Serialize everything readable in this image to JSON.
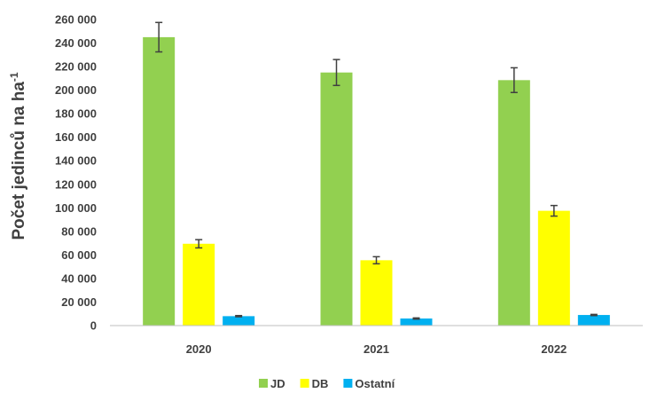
{
  "chart_data": {
    "type": "bar",
    "title": "",
    "xlabel": "",
    "ylabel": "Počet jedinců na ha",
    "ylabel_superscript": "-1",
    "categories": [
      "2020",
      "2021",
      "2022"
    ],
    "ylim": [
      0,
      260000
    ],
    "yticks": [
      0,
      20000,
      40000,
      60000,
      80000,
      100000,
      120000,
      140000,
      160000,
      180000,
      200000,
      220000,
      240000,
      260000
    ],
    "ytick_labels": [
      "0",
      "20 000",
      "40 000",
      "60 000",
      "80 000",
      "100 000",
      "120 000",
      "140 000",
      "160 000",
      "180 000",
      "200 000",
      "220 000",
      "240 000",
      "260 000"
    ],
    "grid": false,
    "legend_position": "bottom",
    "series": [
      {
        "name": "JD",
        "color": "#92d050",
        "values": [
          245000,
          215000,
          208500
        ],
        "errors": [
          12500,
          11000,
          10500
        ]
      },
      {
        "name": "DB",
        "color": "#ffff00",
        "values": [
          69500,
          55500,
          97500
        ],
        "errors": [
          3500,
          3000,
          4500
        ]
      },
      {
        "name": "Ostatní",
        "color": "#00b0f0",
        "values": [
          8000,
          6000,
          9000
        ],
        "errors": [
          500,
          500,
          500
        ]
      }
    ]
  }
}
